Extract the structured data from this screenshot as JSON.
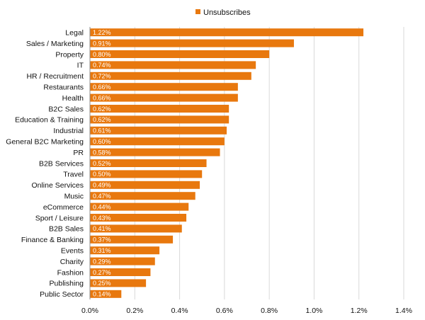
{
  "chart_data": {
    "type": "bar",
    "orientation": "horizontal",
    "title": "",
    "xlabel": "",
    "ylabel": "",
    "legend": {
      "placement": "top-center",
      "entries": [
        "Unsubscribes"
      ]
    },
    "grid": true,
    "xlim": [
      0,
      1.4
    ],
    "xticks": [
      "0.0%",
      "0.2%",
      "0.4%",
      "0.6%",
      "0.8%",
      "1.0%",
      "1.2%",
      "1.4%"
    ],
    "categories": [
      "Legal",
      "Sales / Marketing",
      "Property",
      "IT",
      "HR / Recruitment",
      "Restaurants",
      "Health",
      "B2C Sales",
      "Education & Training",
      "Industrial",
      "General B2C Marketing",
      "PR",
      "B2B Services",
      "Travel",
      "Online Services",
      "Music",
      "eCommerce",
      "Sport / Leisure",
      "B2B Sales",
      "Finance & Banking",
      "Events",
      "Charity",
      "Fashion",
      "Publishing",
      "Public Sector"
    ],
    "series": [
      {
        "name": "Unsubscribes",
        "color": "#e8780e",
        "values": [
          1.22,
          0.91,
          0.8,
          0.74,
          0.72,
          0.66,
          0.66,
          0.62,
          0.62,
          0.61,
          0.6,
          0.58,
          0.52,
          0.5,
          0.49,
          0.47,
          0.44,
          0.43,
          0.41,
          0.37,
          0.31,
          0.29,
          0.27,
          0.25,
          0.14
        ],
        "data_labels": [
          "1.22%",
          "0.91%",
          "0.80%",
          "0.74%",
          "0.72%",
          "0.66%",
          "0.66%",
          "0.62%",
          "0.62%",
          "0.61%",
          "0.60%",
          "0.58%",
          "0.52%",
          "0.50%",
          "0.49%",
          "0.47%",
          "0.44%",
          "0.43%",
          "0.41%",
          "0.37%",
          "0.31%",
          "0.29%",
          "0.27%",
          "0.25%",
          "0.14%"
        ]
      }
    ]
  }
}
